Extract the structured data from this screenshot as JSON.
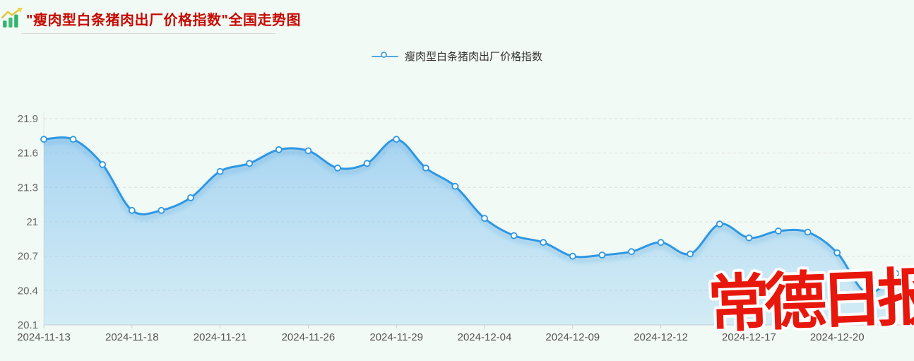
{
  "header": {
    "title": "\"瘦肉型白条猪肉出厂价格指数\"全国走势图",
    "icon": "trend-chart-icon"
  },
  "legend": {
    "label": "瘦肉型白条猪肉出厂价格指数"
  },
  "watermark": {
    "text": "常德日报"
  },
  "colors": {
    "title_red": "#c60b02",
    "line_blue": "#2e97e3",
    "legend_blue": "#56a7da",
    "area_top": "rgba(106,181,238,0.55)",
    "area_bottom": "rgba(160,212,245,0.38)",
    "grid_gray": "#dcdcdc",
    "axis_gray": "#cccccc",
    "y_label_gray": "#666666",
    "x_label_gray": "#555555",
    "watermark_red": "#e8170c",
    "page_bg": "#f2faf5"
  },
  "chart_data": {
    "type": "line",
    "title": "\"瘦肉型白条猪肉出厂价格指数\"全国走势图",
    "smooth": true,
    "markers": "empty-circle",
    "grid": "horizontal-dashed",
    "legend_position": "top-center",
    "series": [
      {
        "name": "瘦肉型白条猪肉出厂价格指数",
        "values": [
          21.72,
          21.72,
          21.5,
          21.1,
          21.1,
          21.21,
          21.44,
          21.51,
          21.63,
          21.62,
          21.47,
          21.51,
          21.72,
          21.47,
          21.31,
          21.03,
          20.88,
          20.82,
          20.7,
          20.71,
          20.74,
          20.82,
          20.72,
          20.98,
          20.86,
          20.92,
          20.91,
          20.73,
          20.38,
          20.55
        ]
      }
    ],
    "n_points": 30,
    "x_tick_labels": [
      "2024-11-13",
      "2024-11-18",
      "2024-11-21",
      "2024-11-26",
      "2024-11-29",
      "2024-12-04",
      "2024-12-09",
      "2024-12-12",
      "2024-12-17",
      "2024-12-20"
    ],
    "x_label_interval": 3,
    "ylim": [
      20.1,
      21.9
    ],
    "y_ticks": [
      21.9,
      21.6,
      21.3,
      21,
      20.7,
      20.4,
      20.1
    ],
    "y_tick_labels": [
      "21.9",
      "21.6",
      "21.3",
      "21",
      "20.7",
      "20.4",
      "20.1"
    ]
  }
}
